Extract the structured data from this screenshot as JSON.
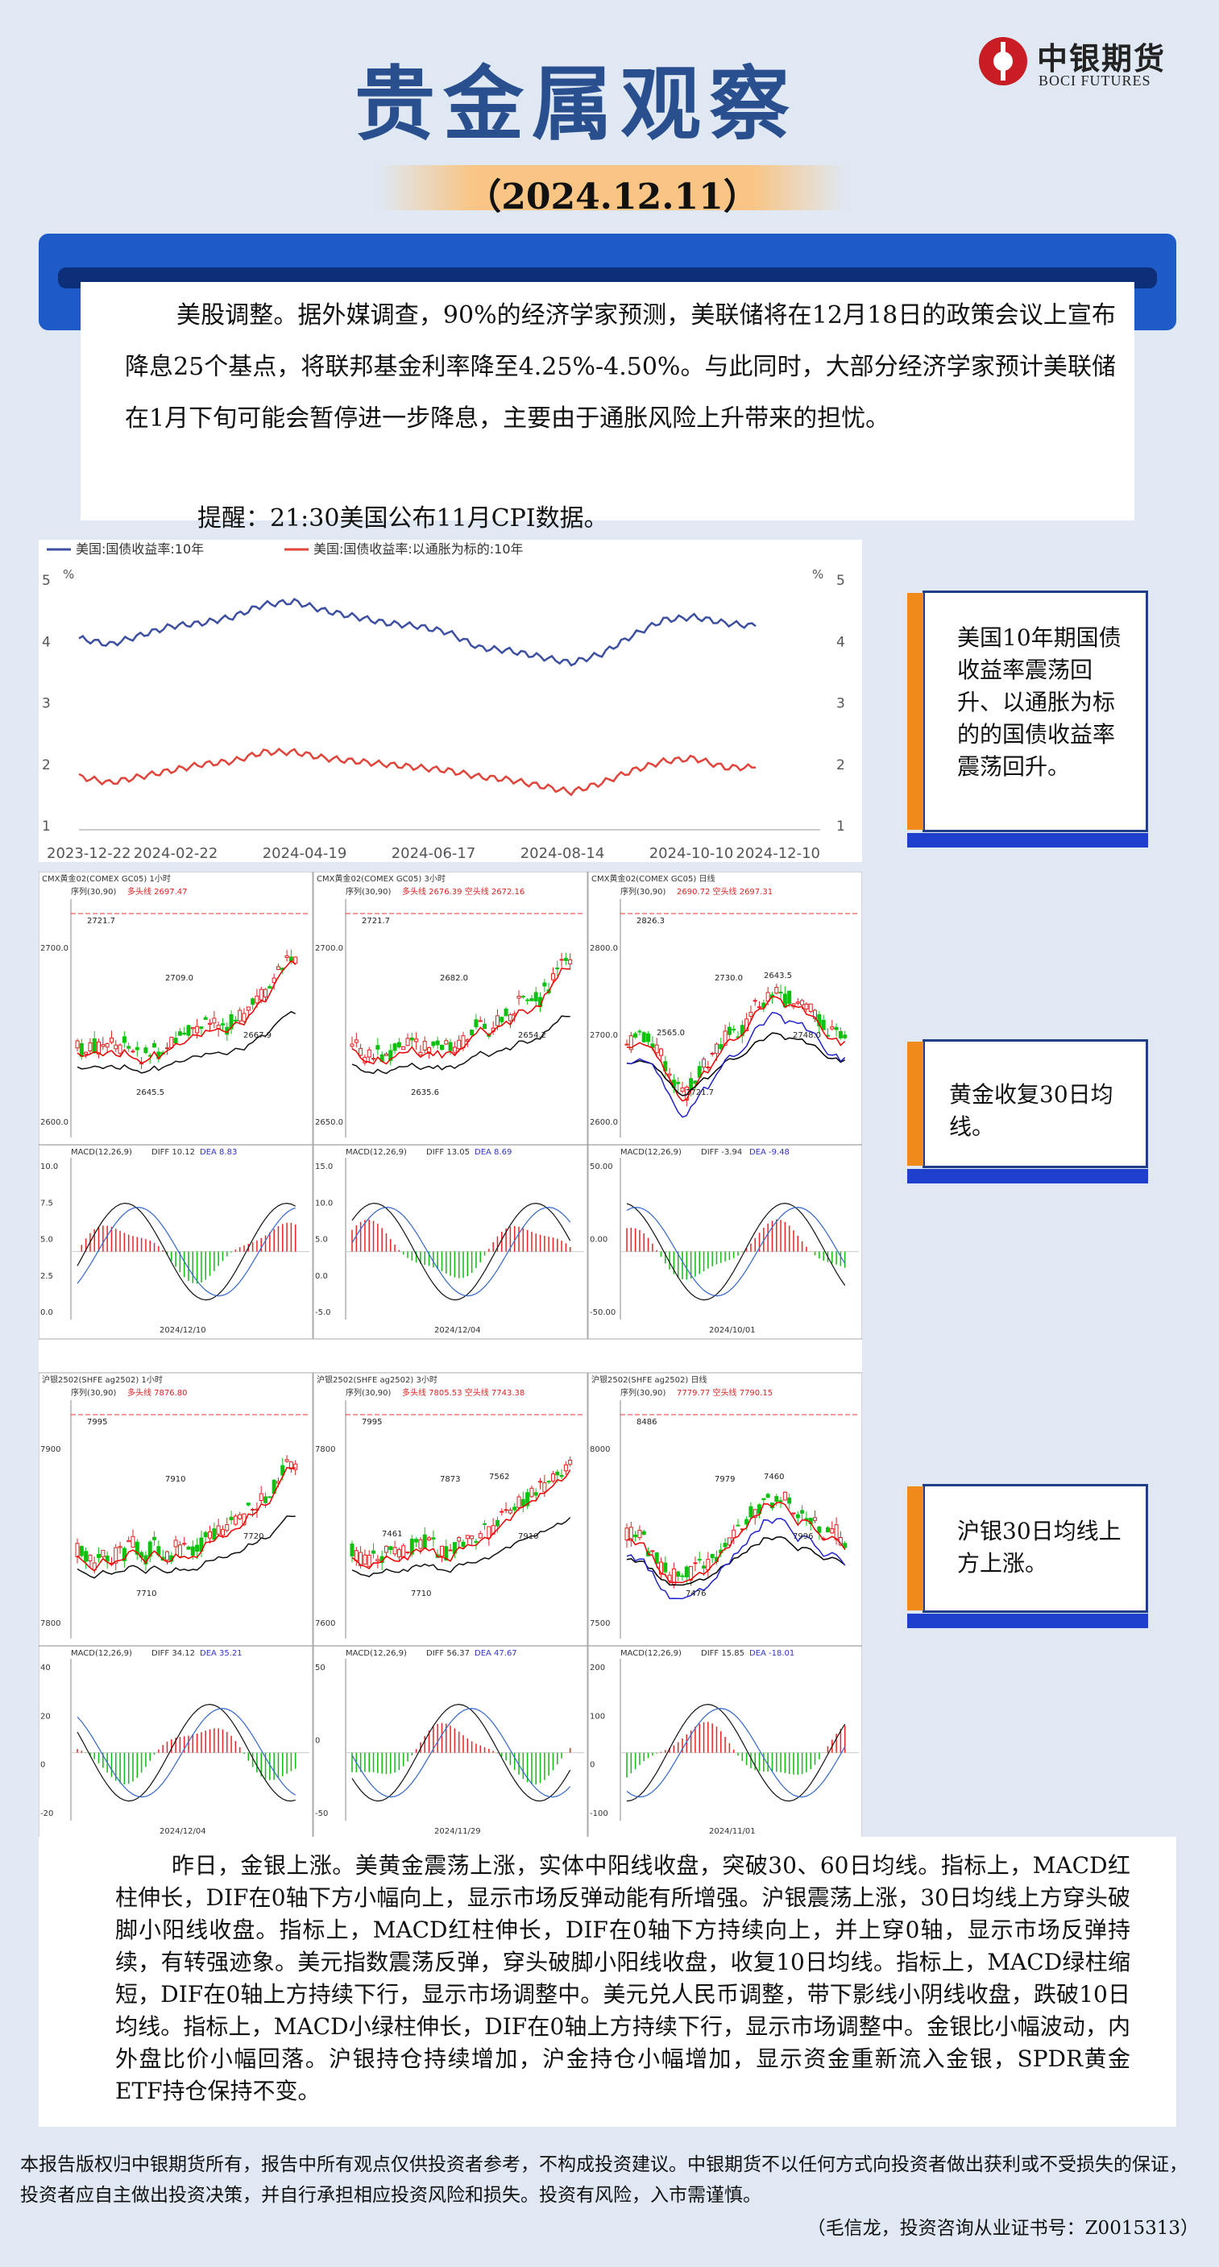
{
  "header": {
    "title": "贵金属观察",
    "date": "（2024.12.11）",
    "logo_cn": "中银期货",
    "logo_en": "BOCI FUTURES"
  },
  "summary": {
    "text": "美股调整。据外媒调查，90%的经济学家预测，美联储将在12月18日的政策会议上宣布降息25个基点，将联邦基金利率降至4.25%-4.50%。与此同时，大部分经济学家预计美联储在1月下旬可能会暂停进一步降息，主要由于通胀风险上升带来的担忧。",
    "reminder": "提醒：21:30美国公布11月CPI数据。"
  },
  "notes": {
    "bond": "美国10年期国债收益率震荡回升、以通胀为标的的国债收益率震荡回升。",
    "gold": "黄金收复30日均线。",
    "silver": "沪银30日均线上方上涨。"
  },
  "colors": {
    "title": "#2a4f8f",
    "blue_bar": "#1e5bc9",
    "arrow": "#f08a1a",
    "series_blue": "#3d4fa0",
    "series_red": "#e0443a",
    "candle_up": "#e02020",
    "candle_down": "#10c010"
  },
  "chart_data": [
    {
      "type": "line",
      "legend": [
        "美国:国债收益率:10年",
        "美国:国债收益率:以通胀为标的:10年"
      ],
      "y_unit": "%",
      "ylim": [
        1,
        5
      ],
      "yticks": [
        "5",
        "4",
        "3",
        "2",
        "1"
      ],
      "xticks": [
        "2023-12-22",
        "2024-02-22",
        "2024-04-19",
        "2024-06-17",
        "2024-08-14",
        "2024-10-10",
        "2024-12-10"
      ],
      "series": [
        {
          "name": "美国:国债收益率:10年",
          "values": [
            4.05,
            3.95,
            4.1,
            4.25,
            4.3,
            4.4,
            4.6,
            4.65,
            4.5,
            4.4,
            4.3,
            4.25,
            4.15,
            3.9,
            3.85,
            3.75,
            3.65,
            3.8,
            4.1,
            4.35,
            4.4,
            4.3,
            4.25
          ]
        },
        {
          "name": "美国:国债收益率:以通胀为标的:10年",
          "values": [
            1.8,
            1.7,
            1.8,
            1.9,
            2.0,
            2.05,
            2.2,
            2.2,
            2.1,
            2.05,
            2.0,
            1.95,
            1.9,
            1.8,
            1.75,
            1.65,
            1.55,
            1.7,
            1.9,
            2.05,
            2.1,
            1.95,
            1.95
          ]
        }
      ]
    },
    {
      "type": "candlestick",
      "panel": "gold-1",
      "header": "CMX黄金02(COMEX GC05) 1小时",
      "ma_label": "序列(30,90)",
      "ma_value": "多头线 2697.47",
      "yticks": [
        "2700.0",
        "2600.0"
      ],
      "labels": [
        "2721.7",
        "2709.0",
        "2667.9",
        "2645.5"
      ],
      "macd_label": "MACD(12,26,9)",
      "diff": "DIFF 10.12",
      "dea": "DEA 8.83",
      "macd_yticks": [
        "10.0",
        "7.5",
        "5.0",
        "2.5",
        "0.0"
      ],
      "date_label": "2024/12/10"
    },
    {
      "type": "candlestick",
      "panel": "gold-2",
      "header": "CMX黄金02(COMEX GC05) 3小时",
      "ma_label": "序列(30,90)",
      "ma_value": "多头线 2676.39 空头线 2672.16",
      "yticks": [
        "2700.0",
        "2650.0"
      ],
      "labels": [
        "2721.7",
        "2682.0",
        "2654.2",
        "2635.6"
      ],
      "macd_label": "MACD(12,26,9)",
      "diff": "DIFF 13.05",
      "dea": "DEA 8.69",
      "macd_yticks": [
        "15.0",
        "10.0",
        "5.0",
        "0.0",
        "-5.0"
      ],
      "date_label": "2024/12/04"
    },
    {
      "type": "candlestick",
      "panel": "gold-3",
      "header": "CMX黄金02(COMEX GC05) 日线",
      "ma_label": "序列(30,90)",
      "ma_value": "2690.72 空头线 2697.31",
      "yticks": [
        "2800.0",
        "2700.0",
        "2600.0"
      ],
      "labels": [
        "2826.3",
        "2730.0",
        "2748.0",
        "2721.7",
        "2643.5",
        "2565.0"
      ],
      "macd_label": "MACD(12,26,9)",
      "diff": "DIFF -3.94",
      "dea": "DEA -9.48",
      "macd_yticks": [
        "50.00",
        "0.00",
        "-50.00"
      ],
      "date_label": "2024/10/01"
    },
    {
      "type": "candlestick",
      "panel": "silver-1",
      "header": "沪银2502(SHFE ag2502) 1小时",
      "ma_label": "序列(30,90)",
      "ma_value": "多头线 7876.80",
      "yticks": [
        "7900",
        "7800"
      ],
      "labels": [
        "7995",
        "7910",
        "7720",
        "7710"
      ],
      "macd_label": "MACD(12,26,9)",
      "diff": "DIFF 34.12",
      "dea": "DEA 35.21",
      "macd_yticks": [
        "40",
        "20",
        "0",
        "-20"
      ],
      "date_label": "2024/12/04"
    },
    {
      "type": "candlestick",
      "panel": "silver-2",
      "header": "沪银2502(SHFE ag2502) 3小时",
      "ma_label": "序列(30,90)",
      "ma_value": "多头线 7805.53 空头线 7743.38",
      "yticks": [
        "7800",
        "7600"
      ],
      "labels": [
        "7995",
        "7873",
        "7910",
        "7710",
        "7562",
        "7461"
      ],
      "macd_label": "MACD(12,26,9)",
      "diff": "DIFF 56.37",
      "dea": "DEA 47.67",
      "macd_yticks": [
        "50",
        "0",
        "-50"
      ],
      "date_label": "2024/11/29"
    },
    {
      "type": "candlestick",
      "panel": "silver-3",
      "header": "沪银2502(SHFE ag2502) 日线",
      "ma_label": "序列(30,90)",
      "ma_value": "7779.77 空头线 7790.15",
      "yticks": [
        "8000",
        "7500"
      ],
      "labels": [
        "8486",
        "7979",
        "7996",
        "7476",
        "7460"
      ],
      "macd_label": "MACD(12,26,9)",
      "diff": "DIFF 15.85",
      "dea": "DEA -18.01",
      "macd_yticks": [
        "200",
        "100",
        "0",
        "-100"
      ],
      "date_label": "2024/11/01"
    }
  ],
  "analysis": {
    "text": "昨日，金银上涨。美黄金震荡上涨，实体中阳线收盘，突破30、60日均线。指标上，MACD红柱伸长，DIF在0轴下方小幅向上，显示市场反弹动能有所增强。沪银震荡上涨，30日均线上方穿头破脚小阳线收盘。指标上，MACD红柱伸长，DIF在0轴下方持续向上，并上穿0轴，显示市场反弹持续，有转强迹象。美元指数震荡反弹，穿头破脚小阳线收盘，收复10日均线。指标上，MACD绿柱缩短，DIF在0轴上方持续下行，显示市场调整中。美元兑人民币调整，带下影线小阴线收盘，跌破10日均线。指标上，MACD小绿柱伸长，DIF在0轴上方持续下行，显示市场调整中。金银比小幅波动，内外盘比价小幅回落。沪银持仓持续增加，沪金持仓小幅增加，显示资金重新流入金银，SPDR黄金ETF持仓保持不变。"
  },
  "footer": {
    "disclaimer": "本报告版权归中银期货所有，报告中所有观点仅供投资者参考，不构成投资建议。中银期货不以任何方式向投资者做出获利或不受损失的保证，投资者应自主做出投资决策，并自行承担相应投资风险和损失。投资有风险，入市需谨慎。",
    "author": "（毛信龙，投资咨询从业证书号：Z0015313）"
  }
}
